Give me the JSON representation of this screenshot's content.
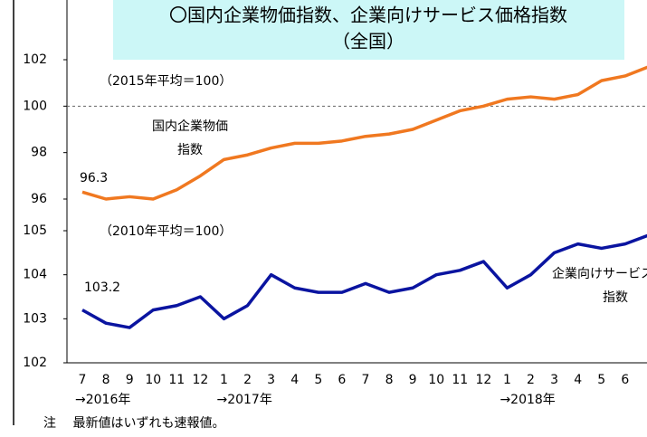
{
  "chart_data": [
    {
      "type": "line",
      "title": "〇国内企業物価指数、企業向けサービス価格指数",
      "subtitle": "（全国）",
      "base_note": "（2015年平均＝100）",
      "series_label": [
        "国内企業物価",
        "指数"
      ],
      "series": [
        {
          "name": "国内企業物価指数",
          "color": "#f07820",
          "values": [
            96.3,
            96.0,
            96.1,
            96.0,
            96.4,
            97.0,
            97.7,
            97.9,
            98.2,
            98.4,
            98.4,
            98.5,
            98.7,
            98.8,
            99.0,
            99.4,
            99.8,
            100.0,
            100.3,
            100.4,
            100.3,
            100.5,
            101.1,
            101.3,
            101.7
          ]
        }
      ],
      "ylim": [
        96,
        102
      ],
      "yticks": [
        96,
        98,
        100,
        102
      ],
      "reference_line": 100
    },
    {
      "type": "line",
      "base_note": "（2010年平均＝100）",
      "series_label": [
        "企業向けサービス価格",
        "指数"
      ],
      "categories": [
        "7",
        "8",
        "9",
        "10",
        "11",
        "12",
        "1",
        "2",
        "3",
        "4",
        "5",
        "6",
        "7",
        "8",
        "9",
        "10",
        "11",
        "12",
        "1",
        "2",
        "3",
        "4",
        "5",
        "6",
        null
      ],
      "year_labels": [
        {
          "index": 0,
          "label": "→2016年"
        },
        {
          "index": 6,
          "label": "→2017年"
        },
        {
          "index": 18,
          "label": "→2018年"
        }
      ],
      "series": [
        {
          "name": "企業向けサービス価格指数",
          "color": "#0a14a0",
          "values": [
            103.2,
            102.9,
            102.8,
            103.2,
            103.3,
            103.5,
            103.0,
            103.3,
            104.0,
            103.7,
            103.6,
            103.6,
            103.8,
            103.6,
            103.7,
            104.0,
            104.1,
            104.3,
            103.7,
            104.0,
            104.5,
            104.7,
            104.6,
            104.7,
            104.9
          ]
        }
      ],
      "ylim": [
        102,
        105
      ],
      "yticks": [
        102,
        103,
        104,
        105
      ]
    }
  ],
  "note": "注　 最新値はいずれも速報値。"
}
